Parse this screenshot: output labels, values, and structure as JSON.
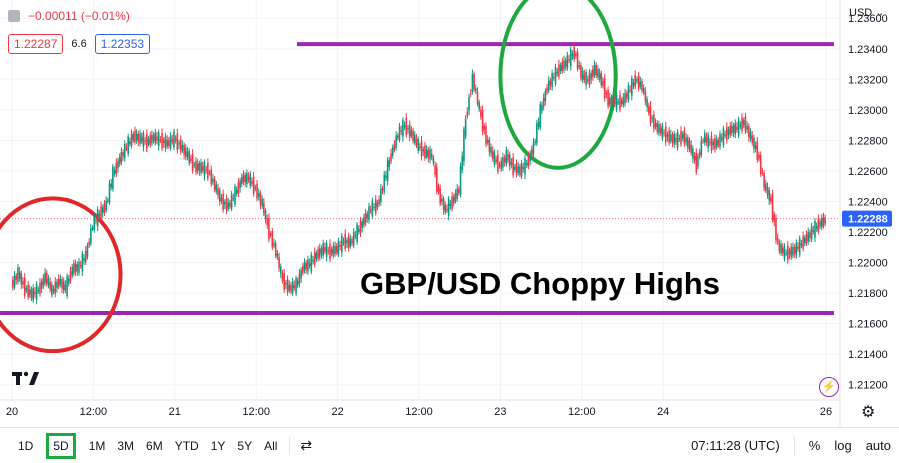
{
  "legend": {
    "change": "−0.00011 (−0.01%)",
    "sell_price": "1.22287",
    "spread": "6.6",
    "buy_price": "1.22353"
  },
  "currency_label": "USD ⌄",
  "last_price_label": "1.22288",
  "toolbar": {
    "timeframes": [
      "1D",
      "5D",
      "1M",
      "3M",
      "6M",
      "YTD",
      "1Y",
      "5Y",
      "All"
    ],
    "active_timeframe": "5D",
    "time": "07:11:28 (UTC)",
    "percent": "%",
    "log": "log",
    "auto": "auto"
  },
  "colors": {
    "up": "#089981",
    "down": "#f23645",
    "annotation_red": "#e0282a",
    "annotation_green": "#1fa83f",
    "annotation_purple": "#9c27b0",
    "price_line": "#2962ff"
  },
  "chart_data": {
    "type": "line",
    "title": "",
    "xlabel": "",
    "ylabel": "",
    "annotation": "GBP/USD Choppy Highs",
    "ylim": [
      1.211,
      1.2368
    ],
    "y_ticks": [
      "1.23600",
      "1.23400",
      "1.23200",
      "1.23000",
      "1.22800",
      "1.22600",
      "1.22400",
      "1.22200",
      "1.22000",
      "1.21800",
      "1.21600",
      "1.21400",
      "1.21200"
    ],
    "y_tick_values": [
      1.236,
      1.234,
      1.232,
      1.23,
      1.228,
      1.226,
      1.224,
      1.222,
      1.22,
      1.218,
      1.216,
      1.214,
      1.212
    ],
    "x_ticks": [
      "20",
      "12:00",
      "21",
      "12:00",
      "22",
      "12:00",
      "23",
      "12:00",
      "24",
      "26"
    ],
    "x_tick_values": [
      0,
      12,
      24,
      36,
      48,
      60,
      72,
      84,
      96,
      120
    ],
    "xlim": [
      0,
      120
    ],
    "last_price": 1.22288,
    "series": [
      {
        "x": [
          0,
          1,
          2,
          3,
          4,
          5,
          6,
          7,
          8,
          9,
          10,
          11,
          12,
          13,
          14,
          15,
          16,
          17,
          18,
          19,
          20,
          21,
          22,
          23,
          24,
          25,
          26,
          27,
          28,
          29,
          30,
          31,
          32,
          33,
          34,
          35,
          36,
          37,
          38,
          39,
          40,
          41,
          42,
          43,
          44,
          45,
          46,
          47,
          48,
          49,
          50,
          51,
          52,
          53,
          54,
          55,
          56,
          57,
          58,
          59,
          60,
          61,
          62,
          63,
          64,
          65,
          66,
          67,
          68,
          69,
          70,
          71,
          72,
          73,
          74,
          75,
          76,
          77,
          78,
          79,
          80,
          81,
          82,
          83,
          84,
          85,
          86,
          87,
          88,
          89,
          90,
          91,
          92,
          93,
          94,
          95,
          96,
          97,
          98,
          99,
          100,
          101,
          102,
          103,
          104,
          105,
          106,
          107,
          108,
          109,
          110,
          111,
          112,
          113,
          114,
          115,
          116,
          117,
          118,
          119,
          120
        ],
        "values": [
          1.2185,
          1.2193,
          1.2183,
          1.2179,
          1.2182,
          1.2191,
          1.2181,
          1.2188,
          1.2183,
          1.2196,
          1.2197,
          1.2205,
          1.2225,
          1.2232,
          1.2238,
          1.2258,
          1.2268,
          1.2276,
          1.2283,
          1.2281,
          1.2279,
          1.2282,
          1.228,
          1.2278,
          1.2281,
          1.2276,
          1.227,
          1.2263,
          1.2262,
          1.226,
          1.225,
          1.224,
          1.2237,
          1.2245,
          1.2255,
          1.2255,
          1.2248,
          1.2238,
          1.222,
          1.2207,
          1.2188,
          1.2183,
          1.2185,
          1.2197,
          1.2199,
          1.2205,
          1.2209,
          1.2207,
          1.2209,
          1.2214,
          1.2213,
          1.222,
          1.2228,
          1.2235,
          1.2238,
          1.2254,
          1.2271,
          1.2284,
          1.229,
          1.2284,
          1.2276,
          1.2272,
          1.227,
          1.2245,
          1.2234,
          1.224,
          1.2248,
          1.2294,
          1.2321,
          1.23,
          1.2281,
          1.2269,
          1.2263,
          1.227,
          1.2262,
          1.226,
          1.2265,
          1.2276,
          1.2299,
          1.2315,
          1.2322,
          1.2328,
          1.2332,
          1.2338,
          1.2323,
          1.2319,
          1.2327,
          1.2319,
          1.2306,
          1.2305,
          1.2305,
          1.2312,
          1.232,
          1.2315,
          1.2298,
          1.2289,
          1.2285,
          1.2282,
          1.228,
          1.2283,
          1.2276,
          1.2264,
          1.2282,
          1.2278,
          1.2278,
          1.2283,
          1.2287,
          1.2288,
          1.2292,
          1.2282,
          1.2272,
          1.2251,
          1.224,
          1.2211,
          1.2206,
          1.2207,
          1.221,
          1.2215,
          1.222,
          1.2225,
          1.2228
        ]
      }
    ],
    "horizontal_lines": [
      {
        "value": 1.2343,
        "x_start": 42,
        "x_end": 120
      },
      {
        "value": 1.2167,
        "x_start": 0,
        "x_end": 120
      }
    ],
    "ellipses": [
      {
        "cx": 6,
        "cy": 1.2192,
        "rx": 10,
        "ry": 0.005
      },
      {
        "cx": 80.5,
        "cy": 1.2322,
        "rx": 8.5,
        "ry": 0.006
      }
    ],
    "grid": true,
    "legend": "none"
  }
}
